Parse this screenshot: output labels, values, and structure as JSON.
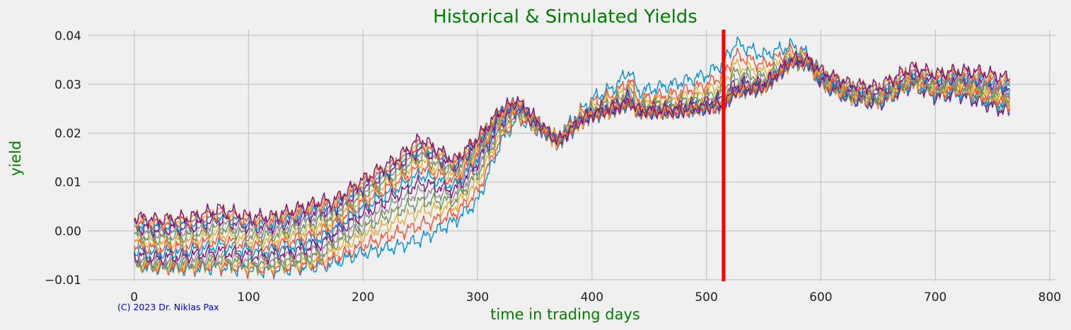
{
  "chart_data": {
    "type": "line",
    "title": "Historical & Simulated Yields",
    "xlabel": "time in trading days",
    "ylabel": "yield",
    "credit": "(C) 2023 Dr. Niklas Pax",
    "xlim": [
      -40,
      805
    ],
    "ylim": [
      -0.0103,
      0.0412
    ],
    "xticks": [
      0,
      100,
      200,
      300,
      400,
      500,
      600,
      700,
      800
    ],
    "xtick_labels": [
      "0",
      "100",
      "200",
      "300",
      "400",
      "500",
      "600",
      "700",
      "800"
    ],
    "yticks": [
      -0.01,
      0.0,
      0.01,
      0.02,
      0.03,
      0.04
    ],
    "ytick_labels": [
      "−0.01",
      "0.00",
      "0.01",
      "0.02",
      "0.03",
      "0.04"
    ],
    "grid": true,
    "legend": false,
    "vertical_marker": {
      "x": 515,
      "color": "#ff0000"
    },
    "x_shared": [
      0,
      20,
      50,
      75,
      100,
      120,
      150,
      165,
      172,
      200,
      230,
      250,
      280,
      300,
      320,
      335,
      350,
      370,
      390,
      400,
      420,
      433,
      440,
      470,
      500,
      515,
      525,
      550,
      575,
      590,
      600,
      625,
      650,
      680,
      700,
      720,
      740,
      765
    ],
    "series": [
      {
        "color": "#008fd5",
        "values": [
          -0.007,
          -0.0075,
          -0.0078,
          -0.0075,
          -0.008,
          -0.0082,
          -0.0075,
          -0.0072,
          -0.0068,
          -0.0045,
          -0.0032,
          -0.0018,
          0.002,
          0.006,
          0.018,
          0.023,
          0.021,
          0.019,
          0.0245,
          0.027,
          0.0295,
          0.033,
          0.0285,
          0.03,
          0.032,
          0.0345,
          0.0385,
          0.036,
          0.038,
          0.036,
          0.032,
          0.029,
          0.028,
          0.032,
          0.03,
          0.0315,
          0.03,
          0.029
        ]
      },
      {
        "color": "#fc4f30",
        "values": [
          -0.007,
          -0.0075,
          -0.0075,
          -0.007,
          -0.0078,
          -0.0078,
          -0.007,
          -0.0066,
          -0.006,
          -0.003,
          -0.0005,
          0.0012,
          0.0035,
          0.008,
          0.019,
          0.0235,
          0.0212,
          0.019,
          0.024,
          0.0262,
          0.028,
          0.031,
          0.027,
          0.028,
          0.03,
          0.032,
          0.036,
          0.034,
          0.037,
          0.0355,
          0.0315,
          0.0285,
          0.0275,
          0.0315,
          0.029,
          0.0305,
          0.029,
          0.028
        ]
      },
      {
        "color": "#e5ae38",
        "values": [
          -0.0068,
          -0.0073,
          -0.0072,
          -0.0066,
          -0.0074,
          -0.0074,
          -0.0064,
          -0.0058,
          -0.0045,
          -0.001,
          0.002,
          0.004,
          0.005,
          0.01,
          0.02,
          0.024,
          0.0214,
          0.0188,
          0.0235,
          0.0255,
          0.0272,
          0.03,
          0.0262,
          0.027,
          0.0285,
          0.0305,
          0.034,
          0.0325,
          0.0362,
          0.035,
          0.031,
          0.028,
          0.027,
          0.031,
          0.0285,
          0.0295,
          0.028,
          0.0265
        ]
      },
      {
        "color": "#6d904f",
        "values": [
          -0.0065,
          -0.007,
          -0.0068,
          -0.006,
          -0.0068,
          -0.0068,
          -0.0056,
          -0.0048,
          -0.0032,
          0.0005,
          0.004,
          0.006,
          0.0062,
          0.0115,
          0.0208,
          0.0244,
          0.0216,
          0.0186,
          0.0232,
          0.025,
          0.0266,
          0.029,
          0.0256,
          0.0262,
          0.0275,
          0.029,
          0.0325,
          0.0315,
          0.0356,
          0.0346,
          0.0306,
          0.0276,
          0.0264,
          0.0304,
          0.028,
          0.0288,
          0.0272,
          0.0255
        ]
      },
      {
        "color": "#8b8b8b",
        "values": [
          -0.0058,
          -0.0064,
          -0.006,
          -0.0052,
          -0.006,
          -0.006,
          -0.0046,
          -0.0036,
          -0.002,
          0.002,
          0.0058,
          0.008,
          0.0072,
          0.0128,
          0.0214,
          0.0247,
          0.0218,
          0.0184,
          0.023,
          0.0246,
          0.0262,
          0.0282,
          0.0252,
          0.0256,
          0.0268,
          0.028,
          0.0312,
          0.0308,
          0.0352,
          0.0343,
          0.0302,
          0.0272,
          0.026,
          0.03,
          0.0276,
          0.0282,
          0.0266,
          0.0248
        ]
      },
      {
        "color": "#810f7c",
        "values": [
          -0.005,
          -0.0056,
          -0.005,
          -0.0042,
          -0.005,
          -0.005,
          -0.0036,
          -0.0024,
          -0.001,
          0.0035,
          0.0074,
          0.0098,
          0.0082,
          0.014,
          0.022,
          0.025,
          0.022,
          0.0183,
          0.0228,
          0.0243,
          0.0258,
          0.0276,
          0.0249,
          0.0251,
          0.0263,
          0.0272,
          0.0302,
          0.0302,
          0.0349,
          0.0341,
          0.03,
          0.027,
          0.0258,
          0.0298,
          0.0274,
          0.0278,
          0.0262,
          0.0242
        ]
      },
      {
        "color": "#008fd5",
        "values": [
          -0.004,
          -0.0046,
          -0.004,
          -0.003,
          -0.004,
          -0.004,
          -0.0024,
          -0.0012,
          0.0,
          0.0048,
          0.0088,
          0.0115,
          0.0092,
          0.015,
          0.0225,
          0.0252,
          0.0222,
          0.0182,
          0.0227,
          0.0241,
          0.0255,
          0.0272,
          0.0247,
          0.0248,
          0.0259,
          0.0266,
          0.0295,
          0.0298,
          0.0347,
          0.034,
          0.03,
          0.027,
          0.026,
          0.03,
          0.0278,
          0.0282,
          0.027,
          0.025
        ]
      },
      {
        "color": "#fc4f30",
        "values": [
          -0.003,
          -0.0036,
          -0.003,
          -0.0018,
          -0.003,
          -0.003,
          -0.0012,
          0.0,
          0.001,
          0.0058,
          0.01,
          0.013,
          0.0102,
          0.0158,
          0.0229,
          0.0254,
          0.0223,
          0.0181,
          0.0226,
          0.0239,
          0.0252,
          0.0268,
          0.0245,
          0.0246,
          0.0256,
          0.0262,
          0.029,
          0.0296,
          0.0346,
          0.034,
          0.0302,
          0.0272,
          0.0264,
          0.0304,
          0.0284,
          0.0288,
          0.0278,
          0.0258
        ]
      },
      {
        "color": "#e5ae38",
        "values": [
          -0.002,
          -0.0026,
          -0.002,
          -0.0006,
          -0.002,
          -0.002,
          0.0,
          0.0012,
          0.0018,
          0.0067,
          0.011,
          0.0142,
          0.011,
          0.0164,
          0.0232,
          0.0256,
          0.0224,
          0.018,
          0.0225,
          0.0238,
          0.025,
          0.0265,
          0.0244,
          0.0244,
          0.0254,
          0.0259,
          0.0287,
          0.0294,
          0.0345,
          0.034,
          0.0305,
          0.0276,
          0.0268,
          0.0308,
          0.029,
          0.0295,
          0.0286,
          0.0266
        ]
      },
      {
        "color": "#6d904f",
        "values": [
          -0.001,
          -0.0016,
          -0.001,
          0.0006,
          -0.001,
          -0.001,
          0.0012,
          0.0024,
          0.0026,
          0.0075,
          0.0118,
          0.0152,
          0.0118,
          0.017,
          0.0235,
          0.0258,
          0.0225,
          0.018,
          0.0224,
          0.0237,
          0.0249,
          0.0263,
          0.0243,
          0.0243,
          0.0252,
          0.0257,
          0.0285,
          0.0293,
          0.0345,
          0.0341,
          0.0309,
          0.0281,
          0.0273,
          0.0313,
          0.0296,
          0.0302,
          0.0294,
          0.0274
        ]
      },
      {
        "color": "#8b8b8b",
        "values": [
          0.0,
          -0.0006,
          0.0,
          0.0016,
          0.0,
          0.0,
          0.0022,
          0.0034,
          0.0034,
          0.0082,
          0.0126,
          0.0161,
          0.0125,
          0.0175,
          0.0238,
          0.026,
          0.0226,
          0.018,
          0.0223,
          0.0236,
          0.0248,
          0.0262,
          0.0243,
          0.0242,
          0.0251,
          0.0256,
          0.0284,
          0.0292,
          0.0346,
          0.0342,
          0.0313,
          0.0286,
          0.0278,
          0.0318,
          0.0302,
          0.0308,
          0.0302,
          0.0282
        ]
      },
      {
        "color": "#810f7c",
        "values": [
          0.0008,
          0.0002,
          0.0008,
          0.0024,
          0.0008,
          0.0008,
          0.003,
          0.0042,
          0.004,
          0.0088,
          0.0132,
          0.0168,
          0.013,
          0.0179,
          0.024,
          0.0262,
          0.0227,
          0.018,
          0.0223,
          0.0236,
          0.0248,
          0.0262,
          0.0243,
          0.0242,
          0.0251,
          0.0256,
          0.0284,
          0.0292,
          0.0347,
          0.0343,
          0.0317,
          0.029,
          0.0282,
          0.0322,
          0.0307,
          0.0313,
          0.0308,
          0.029
        ]
      },
      {
        "color": "#008fd5",
        "values": [
          0.0015,
          0.0009,
          0.0015,
          0.0031,
          0.0015,
          0.0015,
          0.0037,
          0.0049,
          0.0046,
          0.0093,
          0.0137,
          0.0174,
          0.0134,
          0.0182,
          0.0242,
          0.0263,
          0.0228,
          0.018,
          0.0223,
          0.0236,
          0.0248,
          0.0262,
          0.0244,
          0.0242,
          0.0251,
          0.0256,
          0.0284,
          0.0293,
          0.0348,
          0.0344,
          0.032,
          0.0293,
          0.0286,
          0.0326,
          0.0311,
          0.0317,
          0.0313,
          0.0296
        ]
      },
      {
        "color": "#fc4f30",
        "values": [
          0.0021,
          0.0015,
          0.0021,
          0.0037,
          0.0021,
          0.0021,
          0.0043,
          0.0055,
          0.0051,
          0.0098,
          0.0142,
          0.0179,
          0.0138,
          0.0185,
          0.0244,
          0.0264,
          0.0229,
          0.0181,
          0.0224,
          0.0237,
          0.0249,
          0.0263,
          0.0245,
          0.0243,
          0.0252,
          0.0257,
          0.0285,
          0.0294,
          0.0349,
          0.0346,
          0.0323,
          0.0296,
          0.029,
          0.033,
          0.0315,
          0.0321,
          0.0318,
          0.0302
        ]
      },
      {
        "color": "#e5ae38",
        "values": [
          0.0026,
          0.002,
          0.0026,
          0.0042,
          0.0026,
          0.0026,
          0.0048,
          0.006,
          0.0055,
          0.0102,
          0.0146,
          0.0184,
          0.0141,
          0.0188,
          0.0246,
          0.0265,
          0.023,
          0.0182,
          0.0225,
          0.0238,
          0.025,
          0.0264,
          0.0246,
          0.0244,
          0.0253,
          0.0258,
          0.0286,
          0.0295,
          0.035,
          0.0347,
          0.0326,
          0.0299,
          0.0293,
          0.0333,
          0.0319,
          0.0325,
          0.0322,
          0.0307
        ]
      },
      {
        "color": "#810f7c",
        "values": [
          0.0029,
          0.0023,
          0.0029,
          0.0045,
          0.0029,
          0.0029,
          0.0051,
          0.0063,
          0.0058,
          0.0105,
          0.0149,
          0.019,
          0.0144,
          0.019,
          0.0247,
          0.0266,
          0.0231,
          0.0183,
          0.0226,
          0.0239,
          0.0251,
          0.0265,
          0.0247,
          0.0245,
          0.0254,
          0.0259,
          0.0287,
          0.0296,
          0.0352,
          0.0349,
          0.0328,
          0.0301,
          0.0295,
          0.0336,
          0.0321,
          0.0328,
          0.0326,
          0.0312
        ]
      }
    ]
  }
}
